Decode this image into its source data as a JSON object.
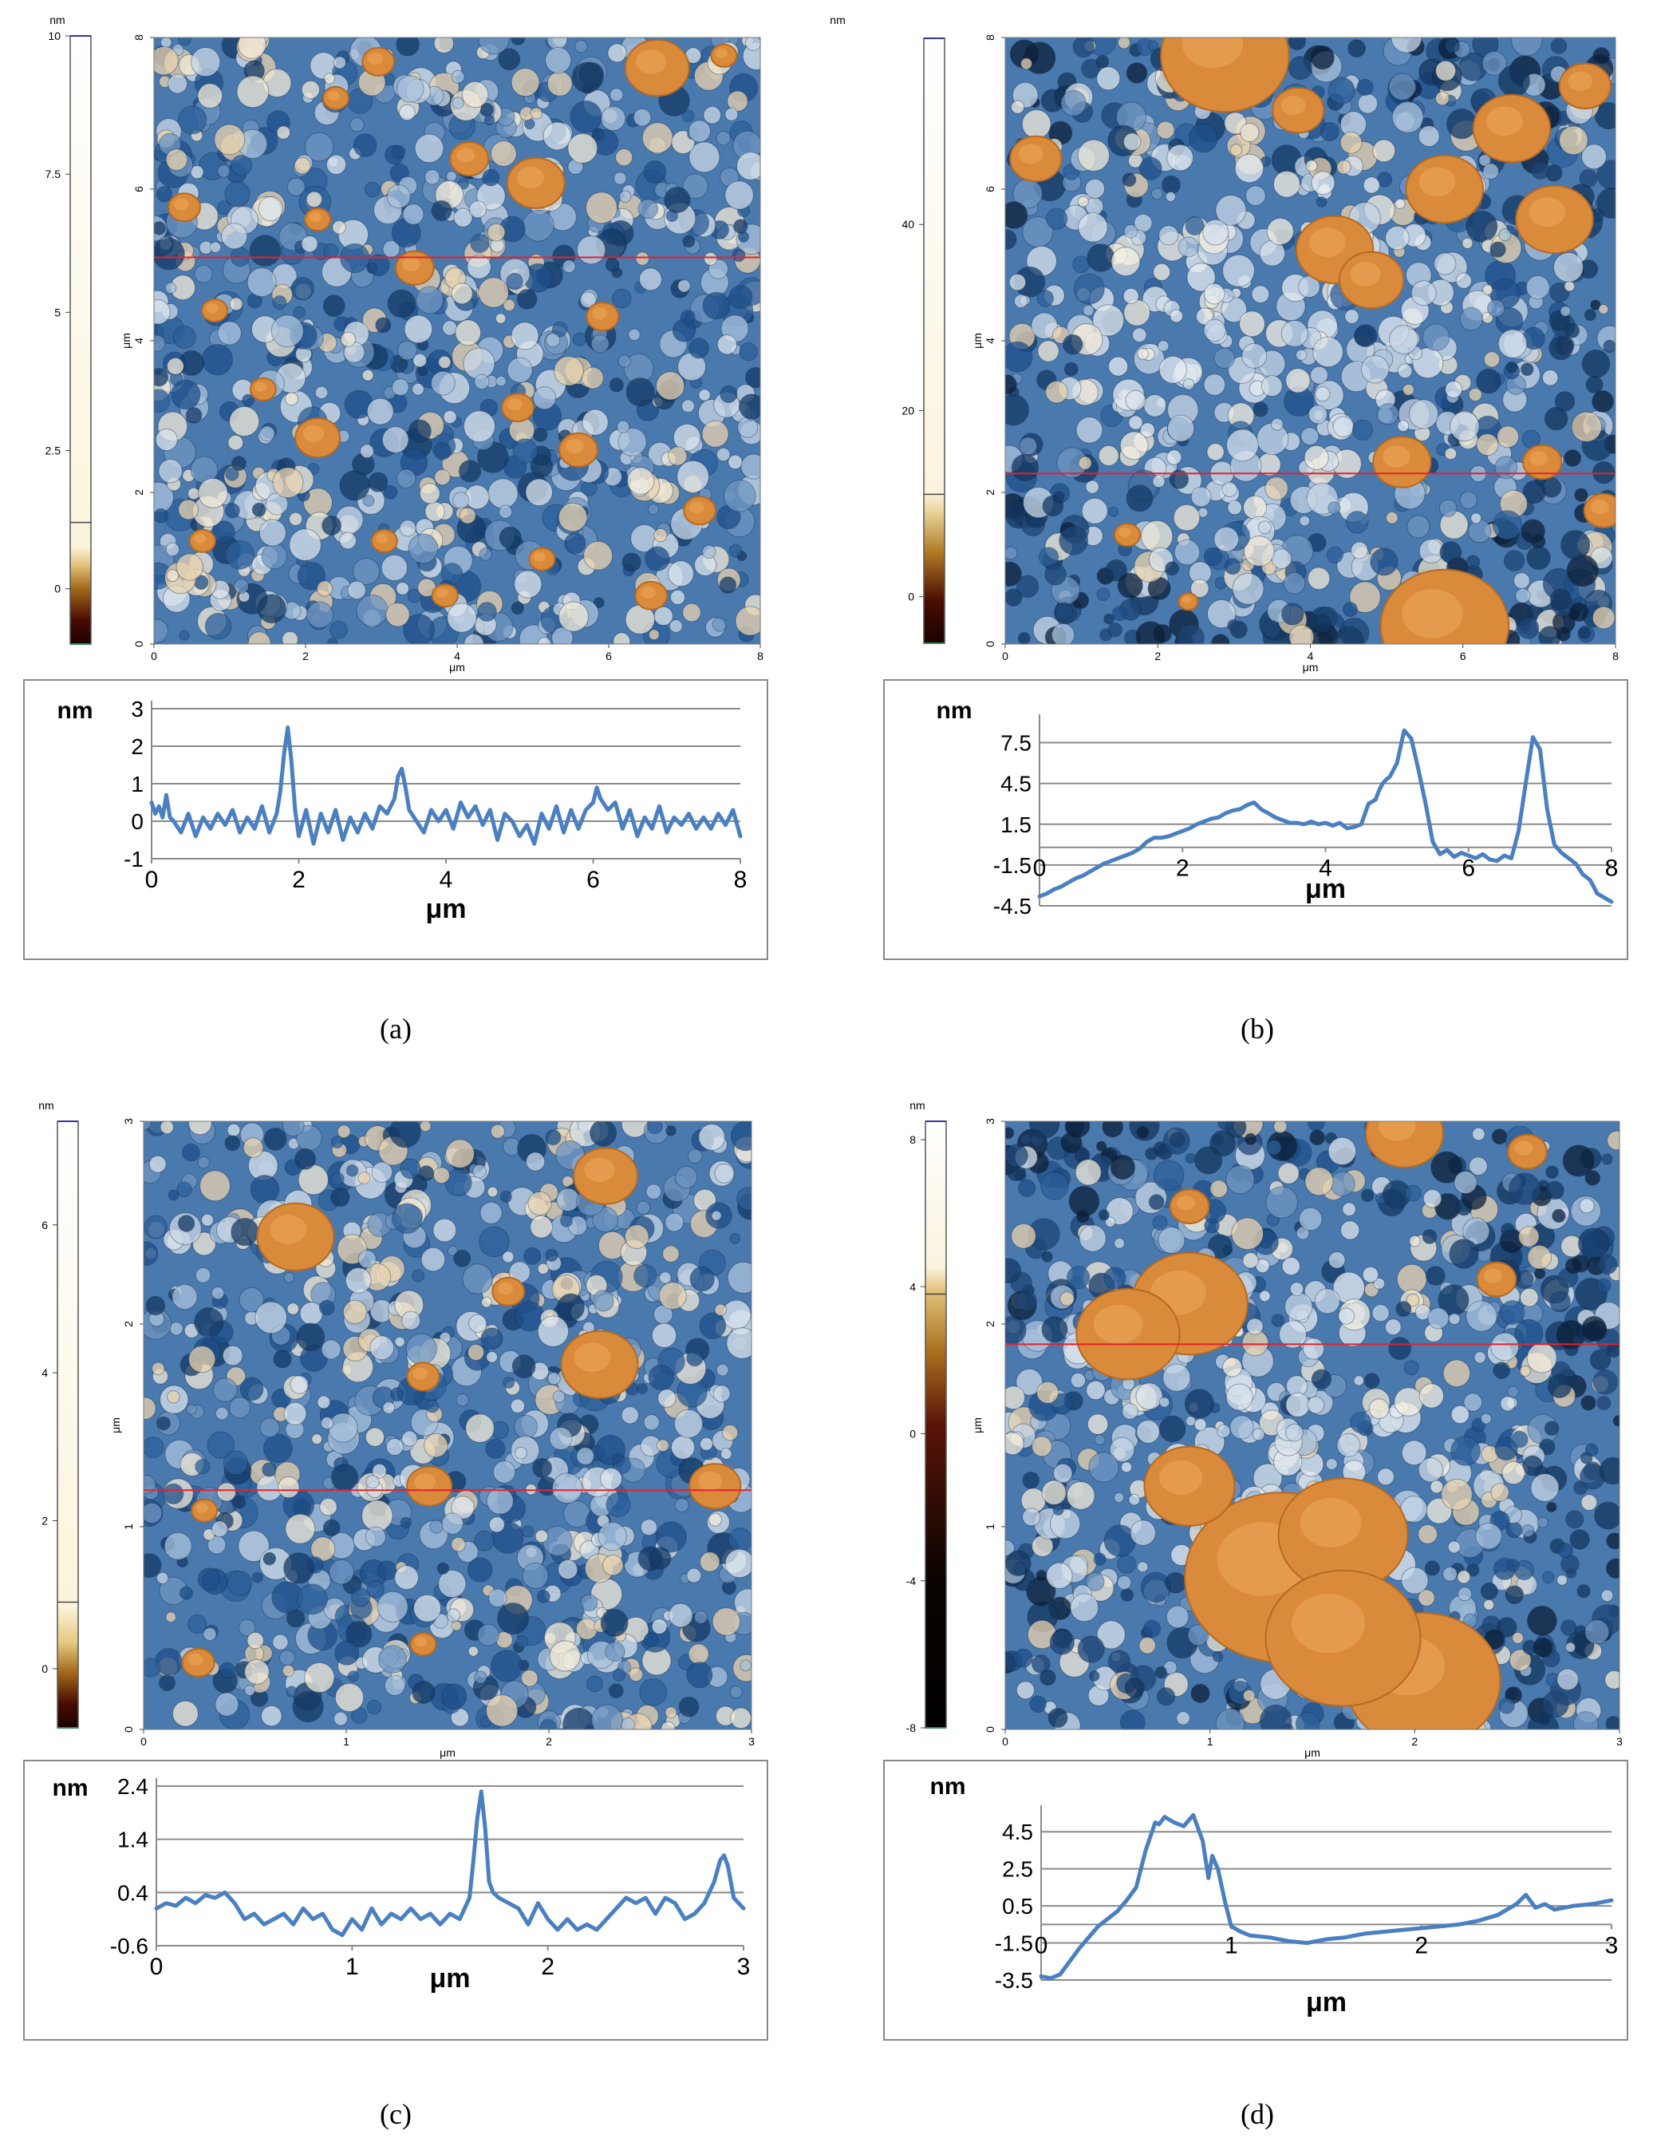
{
  "panels": [
    {
      "id": "a",
      "caption": "(a)",
      "image": {
        "x_axis_label": "μm",
        "y_axis_label": "μm",
        "x_ticks": [
          "0",
          "2",
          "4",
          "6",
          "8"
        ],
        "y_ticks": [
          "0",
          "2",
          "4",
          "6",
          "8"
        ],
        "xlim": [
          0,
          8
        ],
        "ylim": [
          0,
          8
        ],
        "profile_line_y": 5.1,
        "colorbar": {
          "unit": "nm",
          "ticks": [
            "10",
            "7.5",
            "5",
            "2.5",
            "0"
          ],
          "tick_values": [
            10,
            7.5,
            5,
            2.5,
            0
          ],
          "range": [
            -1,
            10
          ],
          "scale_split": 1.2
        }
      },
      "chart_data": {
        "type": "line",
        "title": "",
        "xlabel": "μm",
        "ylabel": "nm",
        "xlim": [
          0,
          8
        ],
        "ylim": [
          -1,
          3
        ],
        "xticks": [
          "0",
          "2",
          "4",
          "6",
          "8"
        ],
        "yticks": [
          "3",
          "2",
          "1",
          "0",
          "-1"
        ],
        "grid": true,
        "series": [
          {
            "name": "height profile",
            "x": [
              0,
              0.05,
              0.1,
              0.15,
              0.2,
              0.25,
              0.3,
              0.4,
              0.5,
              0.6,
              0.7,
              0.8,
              0.9,
              1.0,
              1.1,
              1.2,
              1.3,
              1.4,
              1.5,
              1.6,
              1.7,
              1.75,
              1.8,
              1.85,
              1.9,
              1.95,
              2.0,
              2.1,
              2.2,
              2.3,
              2.4,
              2.5,
              2.6,
              2.7,
              2.8,
              2.9,
              3.0,
              3.1,
              3.2,
              3.3,
              3.35,
              3.4,
              3.45,
              3.5,
              3.6,
              3.7,
              3.8,
              3.9,
              4.0,
              4.1,
              4.2,
              4.3,
              4.4,
              4.5,
              4.6,
              4.7,
              4.8,
              4.9,
              5.0,
              5.1,
              5.2,
              5.3,
              5.4,
              5.5,
              5.6,
              5.7,
              5.8,
              5.9,
              6.0,
              6.05,
              6.1,
              6.2,
              6.3,
              6.4,
              6.5,
              6.6,
              6.7,
              6.8,
              6.9,
              7.0,
              7.1,
              7.2,
              7.3,
              7.4,
              7.5,
              7.6,
              7.7,
              7.8,
              7.9,
              8.0
            ],
            "y": [
              0.5,
              0.2,
              0.4,
              0.1,
              0.7,
              0.1,
              0.0,
              -0.3,
              0.2,
              -0.4,
              0.1,
              -0.2,
              0.2,
              -0.1,
              0.3,
              -0.3,
              0.1,
              -0.2,
              0.4,
              -0.3,
              0.2,
              0.8,
              1.8,
              2.5,
              1.6,
              0.3,
              -0.4,
              0.3,
              -0.6,
              0.2,
              -0.3,
              0.3,
              -0.5,
              0.1,
              -0.3,
              0.2,
              -0.2,
              0.4,
              0.2,
              0.6,
              1.2,
              1.4,
              0.9,
              0.3,
              0.0,
              -0.3,
              0.3,
              0.0,
              0.3,
              -0.2,
              0.5,
              0.1,
              0.4,
              -0.1,
              0.3,
              -0.5,
              0.2,
              0.0,
              -0.4,
              -0.1,
              -0.6,
              0.2,
              -0.2,
              0.4,
              -0.3,
              0.3,
              -0.2,
              0.3,
              0.5,
              0.9,
              0.6,
              0.3,
              0.5,
              -0.2,
              0.3,
              -0.4,
              0.1,
              -0.2,
              0.4,
              -0.3,
              0.1,
              -0.1,
              0.2,
              -0.2,
              0.1,
              -0.2,
              0.2,
              -0.1,
              0.3,
              -0.4
            ]
          }
        ]
      }
    },
    {
      "id": "b",
      "caption": "(b)",
      "image": {
        "x_axis_label": "μm",
        "y_axis_label": "μm",
        "x_ticks": [
          "0",
          "2",
          "4",
          "6",
          "8"
        ],
        "y_ticks": [
          "0",
          "2",
          "4",
          "6",
          "8"
        ],
        "xlim": [
          0,
          8
        ],
        "ylim": [
          0,
          8
        ],
        "profile_line_y": 2.25,
        "colorbar": {
          "unit": "nm",
          "ticks": [
            "40",
            "20",
            "0"
          ],
          "tick_values": [
            40,
            20,
            0
          ],
          "range": [
            -5,
            60
          ],
          "scale_split": 11
        }
      },
      "chart_data": {
        "type": "line",
        "title": "",
        "xlabel": "μm",
        "ylabel": "nm",
        "xlim": [
          0,
          8
        ],
        "ylim": [
          -4.5,
          9
        ],
        "xticks": [
          "0",
          "2",
          "4",
          "6",
          "8"
        ],
        "yticks": [
          "7.5",
          "4.5",
          "1.5",
          "-1.5",
          "-4.5"
        ],
        "grid": true,
        "series": [
          {
            "name": "height profile",
            "x": [
              0,
              0.1,
              0.2,
              0.3,
              0.4,
              0.5,
              0.6,
              0.7,
              0.8,
              0.9,
              1.0,
              1.1,
              1.2,
              1.3,
              1.4,
              1.5,
              1.6,
              1.7,
              1.8,
              1.9,
              2.0,
              2.1,
              2.2,
              2.3,
              2.4,
              2.5,
              2.6,
              2.7,
              2.8,
              2.9,
              3.0,
              3.1,
              3.2,
              3.3,
              3.4,
              3.5,
              3.6,
              3.7,
              3.8,
              3.9,
              4.0,
              4.1,
              4.2,
              4.3,
              4.4,
              4.5,
              4.6,
              4.7,
              4.75,
              4.8,
              4.85,
              4.9,
              5.0,
              5.1,
              5.2,
              5.3,
              5.4,
              5.5,
              5.6,
              5.7,
              5.8,
              5.9,
              6.0,
              6.1,
              6.2,
              6.3,
              6.4,
              6.5,
              6.6,
              6.7,
              6.8,
              6.9,
              7.0,
              7.1,
              7.2,
              7.3,
              7.4,
              7.5,
              7.6,
              7.7,
              7.8,
              7.9,
              8.0
            ],
            "y": [
              -3.8,
              -3.6,
              -3.3,
              -3.1,
              -2.8,
              -2.5,
              -2.3,
              -2.0,
              -1.7,
              -1.4,
              -1.2,
              -1.0,
              -0.8,
              -0.6,
              -0.3,
              0.2,
              0.5,
              0.5,
              0.6,
              0.8,
              1.0,
              1.2,
              1.5,
              1.7,
              1.9,
              2.0,
              2.3,
              2.5,
              2.6,
              2.9,
              3.1,
              2.6,
              2.3,
              2.0,
              1.8,
              1.6,
              1.6,
              1.5,
              1.7,
              1.5,
              1.6,
              1.4,
              1.6,
              1.2,
              1.3,
              1.5,
              3.0,
              3.3,
              4.0,
              4.5,
              4.8,
              5.0,
              6.0,
              8.4,
              7.8,
              5.5,
              3.0,
              0.2,
              -0.7,
              -0.4,
              -0.9,
              -0.6,
              -0.8,
              -1.0,
              -0.7,
              -1.1,
              -1.2,
              -0.8,
              -1.0,
              1.0,
              4.5,
              7.9,
              7.0,
              2.6,
              0.0,
              -0.6,
              -1.0,
              -1.4,
              -2.2,
              -2.6,
              -3.6,
              -3.9,
              -4.2
            ]
          }
        ]
      }
    },
    {
      "id": "c",
      "caption": "(c)",
      "image": {
        "x_axis_label": "μm",
        "y_axis_label": "μm",
        "x_ticks": [
          "0",
          "1",
          "2",
          "3"
        ],
        "y_ticks": [
          "0",
          "1",
          "2",
          "3"
        ],
        "xlim": [
          0,
          3
        ],
        "ylim": [
          0,
          3
        ],
        "profile_line_y": 1.18,
        "colorbar": {
          "unit": "nm",
          "ticks": [
            "6",
            "4",
            "2",
            "0"
          ],
          "tick_values": [
            6,
            4,
            2,
            0
          ],
          "range": [
            -0.8,
            7.4
          ],
          "scale_split": 0.9
        }
      },
      "chart_data": {
        "type": "line",
        "title": "",
        "xlabel": "μm",
        "ylabel": "nm",
        "xlim": [
          0,
          3
        ],
        "ylim": [
          -0.6,
          2.4
        ],
        "xticks": [
          "0",
          "1",
          "2",
          "3"
        ],
        "yticks": [
          "2.4",
          "1.4",
          "0.4",
          "-0.6"
        ],
        "grid": true,
        "series": [
          {
            "name": "height profile",
            "x": [
              0,
              0.05,
              0.1,
              0.15,
              0.2,
              0.25,
              0.3,
              0.35,
              0.4,
              0.45,
              0.5,
              0.55,
              0.6,
              0.65,
              0.7,
              0.75,
              0.8,
              0.85,
              0.9,
              0.95,
              1.0,
              1.05,
              1.1,
              1.15,
              1.2,
              1.25,
              1.3,
              1.35,
              1.4,
              1.45,
              1.5,
              1.55,
              1.6,
              1.62,
              1.64,
              1.66,
              1.68,
              1.7,
              1.72,
              1.75,
              1.8,
              1.85,
              1.9,
              1.95,
              2.0,
              2.05,
              2.1,
              2.15,
              2.2,
              2.25,
              2.3,
              2.35,
              2.4,
              2.45,
              2.5,
              2.55,
              2.6,
              2.65,
              2.7,
              2.75,
              2.8,
              2.85,
              2.88,
              2.9,
              2.92,
              2.95,
              3.0
            ],
            "y": [
              0.1,
              0.2,
              0.15,
              0.3,
              0.2,
              0.35,
              0.3,
              0.4,
              0.2,
              -0.1,
              0.0,
              -0.2,
              -0.1,
              0.0,
              -0.2,
              0.1,
              -0.1,
              0.0,
              -0.3,
              -0.4,
              -0.1,
              -0.3,
              0.1,
              -0.2,
              0.0,
              -0.1,
              0.1,
              -0.1,
              0.0,
              -0.2,
              0.0,
              -0.1,
              0.3,
              1.0,
              1.8,
              2.3,
              1.6,
              0.6,
              0.4,
              0.3,
              0.2,
              0.1,
              -0.2,
              0.2,
              -0.1,
              -0.3,
              -0.1,
              -0.3,
              -0.2,
              -0.3,
              -0.1,
              0.1,
              0.3,
              0.2,
              0.3,
              0.0,
              0.3,
              0.2,
              -0.1,
              0.0,
              0.2,
              0.6,
              1.0,
              1.1,
              0.9,
              0.3,
              0.1
            ]
          }
        ]
      }
    },
    {
      "id": "d",
      "caption": "(d)",
      "image": {
        "x_axis_label": "μm",
        "y_axis_label": "μm",
        "x_ticks": [
          "0",
          "1",
          "2",
          "3"
        ],
        "y_ticks": [
          "0",
          "1",
          "2",
          "3"
        ],
        "xlim": [
          0,
          3
        ],
        "ylim": [
          0,
          3
        ],
        "profile_line_y": 1.9,
        "colorbar": {
          "unit": "nm",
          "ticks": [
            "8",
            "4",
            "0",
            "-4",
            "-8"
          ],
          "tick_values": [
            8,
            4,
            0,
            -4,
            -8
          ],
          "range": [
            -8,
            8.5
          ],
          "scale_split": 3.8
        }
      },
      "chart_data": {
        "type": "line",
        "title": "",
        "xlabel": "μm",
        "ylabel": "nm",
        "xlim": [
          0,
          3
        ],
        "ylim": [
          -3.5,
          5.5
        ],
        "xticks": [
          "0",
          "1",
          "2",
          "3"
        ],
        "yticks": [
          "4.5",
          "2.5",
          "0.5",
          "-1.5",
          "-3.5"
        ],
        "grid": true,
        "series": [
          {
            "name": "height profile",
            "x": [
              0,
              0.05,
              0.1,
              0.15,
              0.2,
              0.25,
              0.3,
              0.35,
              0.4,
              0.45,
              0.5,
              0.55,
              0.6,
              0.62,
              0.65,
              0.7,
              0.75,
              0.8,
              0.85,
              0.88,
              0.9,
              0.93,
              0.97,
              1.0,
              1.05,
              1.1,
              1.2,
              1.3,
              1.4,
              1.5,
              1.6,
              1.7,
              1.8,
              1.9,
              2.0,
              2.1,
              2.2,
              2.3,
              2.4,
              2.5,
              2.55,
              2.6,
              2.65,
              2.7,
              2.8,
              2.9,
              3.0
            ],
            "y": [
              -3.3,
              -3.4,
              -3.2,
              -2.5,
              -1.8,
              -1.2,
              -0.6,
              -0.2,
              0.2,
              0.8,
              1.5,
              3.5,
              5.0,
              4.9,
              5.3,
              5.0,
              4.8,
              5.4,
              4.0,
              2.0,
              3.2,
              2.5,
              0.6,
              -0.6,
              -0.9,
              -1.1,
              -1.2,
              -1.4,
              -1.5,
              -1.3,
              -1.2,
              -1.0,
              -0.9,
              -0.8,
              -0.7,
              -0.6,
              -0.5,
              -0.3,
              0.0,
              0.6,
              1.1,
              0.4,
              0.6,
              0.3,
              0.5,
              0.6,
              0.8
            ]
          }
        ]
      }
    }
  ]
}
